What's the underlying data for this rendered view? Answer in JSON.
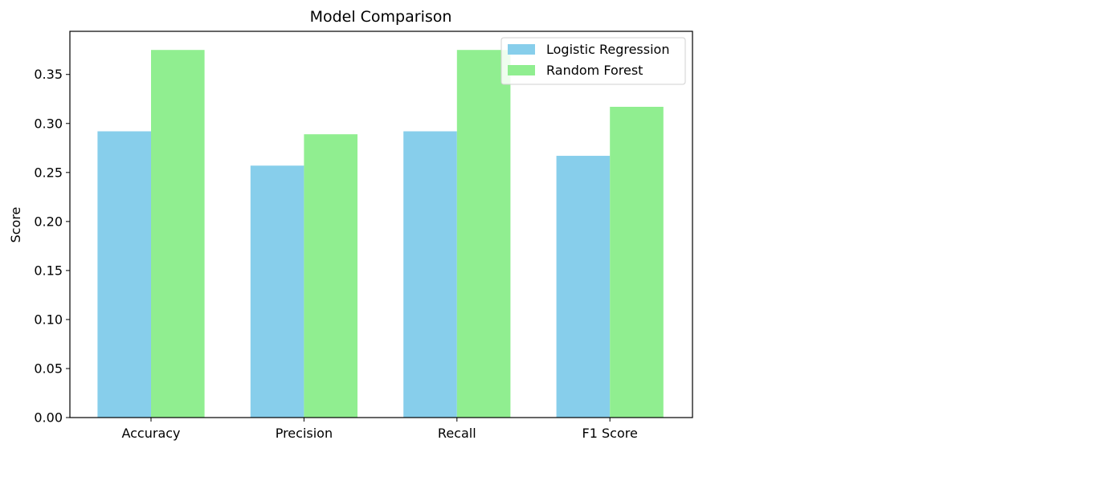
{
  "chart_data": {
    "type": "bar",
    "title": "Model Comparison",
    "xlabel": "",
    "ylabel": "Score",
    "categories": [
      "Accuracy",
      "Precision",
      "Recall",
      "F1 Score"
    ],
    "series": [
      {
        "name": "Logistic Regression",
        "values": [
          0.292,
          0.257,
          0.292,
          0.267
        ],
        "color": "#87ceeb"
      },
      {
        "name": "Random Forest",
        "values": [
          0.375,
          0.289,
          0.375,
          0.317
        ],
        "color": "#90ee90"
      }
    ],
    "ylim": [
      0,
      0.394
    ],
    "yticks": [
      0.0,
      0.05,
      0.1,
      0.15,
      0.2,
      0.25,
      0.3,
      0.35
    ],
    "ytick_labels": [
      "0.00",
      "0.05",
      "0.10",
      "0.15",
      "0.20",
      "0.25",
      "0.30",
      "0.35"
    ],
    "grid": false,
    "legend_position": "top-right"
  }
}
